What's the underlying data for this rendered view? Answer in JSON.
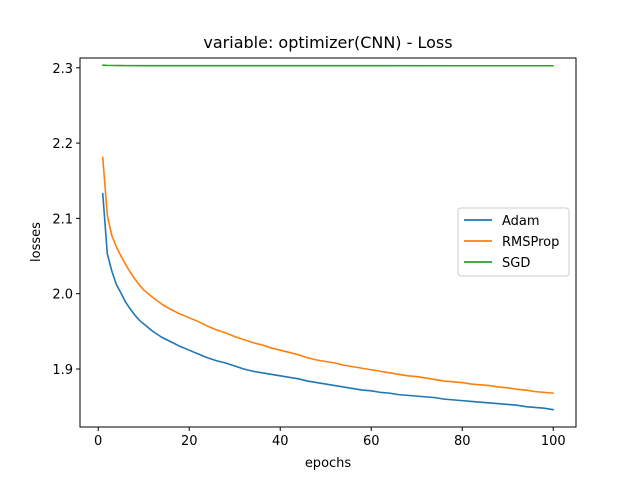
{
  "chart_data": {
    "type": "line",
    "title": "variable: optimizer(CNN) - Loss",
    "xlabel": "epochs",
    "ylabel": "losses",
    "xlim": [
      -4.0,
      105.0
    ],
    "ylim": [
      1.823,
      2.313
    ],
    "xticks": [
      0,
      20,
      40,
      60,
      80,
      100
    ],
    "yticks": [
      1.9,
      2.0,
      2.1,
      2.2,
      2.3
    ],
    "ytick_labels": [
      "1.9",
      "2.0",
      "2.1",
      "2.2",
      "2.3"
    ],
    "grid": false,
    "legend_position": "center-right",
    "series": [
      {
        "name": "Adam",
        "color": "#1f77b4",
        "x": [
          1,
          2,
          3,
          4,
          5,
          6,
          7,
          8,
          9,
          10,
          12,
          14,
          16,
          18,
          20,
          22,
          24,
          26,
          28,
          30,
          32,
          34,
          36,
          38,
          40,
          42,
          44,
          46,
          48,
          50,
          52,
          54,
          56,
          58,
          60,
          62,
          64,
          66,
          68,
          70,
          72,
          74,
          76,
          78,
          80,
          82,
          84,
          86,
          88,
          90,
          92,
          94,
          96,
          98,
          100
        ],
        "y": [
          2.133,
          2.053,
          2.03,
          2.012,
          2.001,
          1.989,
          1.98,
          1.972,
          1.965,
          1.96,
          1.95,
          1.942,
          1.936,
          1.93,
          1.925,
          1.92,
          1.915,
          1.911,
          1.908,
          1.904,
          1.9,
          1.897,
          1.895,
          1.893,
          1.891,
          1.889,
          1.887,
          1.884,
          1.882,
          1.88,
          1.878,
          1.876,
          1.874,
          1.872,
          1.871,
          1.869,
          1.868,
          1.866,
          1.865,
          1.864,
          1.863,
          1.862,
          1.86,
          1.859,
          1.858,
          1.857,
          1.856,
          1.855,
          1.854,
          1.853,
          1.852,
          1.85,
          1.849,
          1.848,
          1.846
        ]
      },
      {
        "name": "RMSProp",
        "color": "#ff7f0e",
        "x": [
          1,
          2,
          3,
          4,
          5,
          6,
          7,
          8,
          9,
          10,
          12,
          14,
          16,
          18,
          20,
          22,
          24,
          26,
          28,
          30,
          32,
          34,
          36,
          38,
          40,
          42,
          44,
          46,
          48,
          50,
          52,
          54,
          56,
          58,
          60,
          62,
          64,
          66,
          68,
          70,
          72,
          74,
          76,
          78,
          80,
          82,
          84,
          86,
          88,
          90,
          92,
          94,
          96,
          98,
          100
        ],
        "y": [
          2.181,
          2.104,
          2.077,
          2.062,
          2.05,
          2.039,
          2.029,
          2.02,
          2.012,
          2.005,
          1.995,
          1.986,
          1.979,
          1.973,
          1.968,
          1.963,
          1.957,
          1.952,
          1.948,
          1.943,
          1.939,
          1.935,
          1.932,
          1.928,
          1.925,
          1.922,
          1.919,
          1.915,
          1.912,
          1.91,
          1.908,
          1.905,
          1.903,
          1.901,
          1.899,
          1.897,
          1.895,
          1.893,
          1.891,
          1.89,
          1.888,
          1.886,
          1.884,
          1.883,
          1.882,
          1.88,
          1.879,
          1.878,
          1.876,
          1.875,
          1.873,
          1.872,
          1.87,
          1.869,
          1.868
        ]
      },
      {
        "name": "SGD",
        "color": "#2ca02c",
        "x": [
          1,
          2,
          5,
          10,
          20,
          40,
          60,
          80,
          100
        ],
        "y": [
          2.3035,
          2.3032,
          2.3029,
          2.3028,
          2.3028,
          2.3028,
          2.3028,
          2.3027,
          2.3027
        ]
      }
    ]
  }
}
